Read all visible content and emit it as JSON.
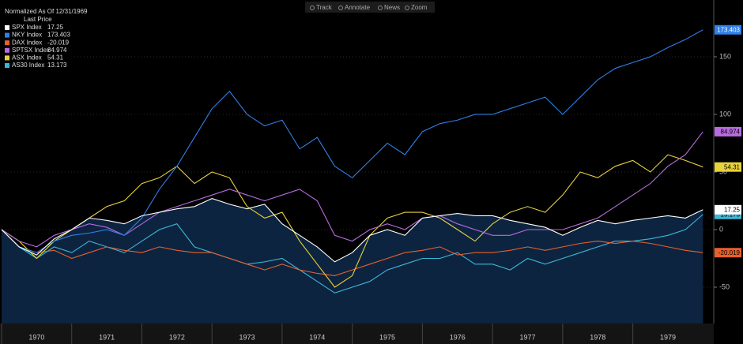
{
  "toolbar": [
    "Track",
    "Annotate",
    "News",
    "Zoom"
  ],
  "chart_data": {
    "type": "line",
    "legend_title": "Normalized As Of 12/31/1969",
    "legend_subtitle": "Last Price",
    "x": [
      1970,
      1970.25,
      1970.5,
      1970.75,
      1971,
      1971.25,
      1971.5,
      1971.75,
      1972,
      1972.25,
      1972.5,
      1972.75,
      1973,
      1973.25,
      1973.5,
      1973.75,
      1974,
      1974.25,
      1974.5,
      1974.75,
      1975,
      1975.25,
      1975.5,
      1975.75,
      1976,
      1976.25,
      1976.5,
      1976.75,
      1977,
      1977.25,
      1977.5,
      1977.75,
      1978,
      1978.25,
      1978.5,
      1978.75,
      1979,
      1979.25,
      1979.5,
      1979.75,
      1980
    ],
    "xlim": [
      1970,
      1980.12
    ],
    "xticks": [
      {
        "value": 1970.5,
        "label": "1970"
      },
      {
        "value": 1971.5,
        "label": "1971"
      },
      {
        "value": 1972.5,
        "label": "1972"
      },
      {
        "value": 1973.5,
        "label": "1973"
      },
      {
        "value": 1974.5,
        "label": "1974"
      },
      {
        "value": 1975.5,
        "label": "1975"
      },
      {
        "value": 1976.5,
        "label": "1976"
      },
      {
        "value": 1977.5,
        "label": "1977"
      },
      {
        "value": 1978.5,
        "label": "1978"
      },
      {
        "value": 1979.5,
        "label": "1979"
      }
    ],
    "ylim": [
      -81.5,
      193.8
    ],
    "yticks": [
      -50,
      0,
      50,
      100,
      150
    ],
    "area_fill": "#0d2440",
    "series": [
      {
        "name": "SPX Index",
        "color": "#ffffff",
        "area": true,
        "values": [
          0,
          -15,
          -22,
          -8,
          0,
          10,
          8,
          5,
          12,
          15,
          18,
          20,
          27,
          22,
          18,
          22,
          5,
          -5,
          -15,
          -28,
          -20,
          -5,
          0,
          -5,
          10,
          12,
          14,
          12,
          12,
          8,
          5,
          2,
          -5,
          2,
          8,
          5,
          8,
          10,
          12,
          10,
          17.25
        ]
      },
      {
        "name": "NKY Index",
        "color": "#2f7fe8",
        "values": [
          0,
          -15,
          -20,
          -10,
          -5,
          -3,
          0,
          -5,
          10,
          35,
          55,
          80,
          105,
          120,
          100,
          90,
          95,
          70,
          80,
          55,
          45,
          60,
          75,
          65,
          85,
          92,
          95,
          100,
          100,
          105,
          110,
          115,
          100,
          115,
          130,
          140,
          145,
          150,
          158,
          165,
          173.403
        ]
      },
      {
        "name": "DAX Index",
        "color": "#e8602c",
        "values": [
          0,
          -15,
          -20,
          -18,
          -25,
          -20,
          -15,
          -18,
          -20,
          -15,
          -18,
          -20,
          -20,
          -25,
          -30,
          -35,
          -30,
          -35,
          -38,
          -40,
          -35,
          -30,
          -25,
          -20,
          -18,
          -15,
          -22,
          -20,
          -20,
          -18,
          -15,
          -18,
          -15,
          -12,
          -10,
          -12,
          -10,
          -12,
          -15,
          -18,
          -20.019
        ]
      },
      {
        "name": "SPTSX Index",
        "color": "#b86be0",
        "values": [
          0,
          -10,
          -15,
          -5,
          0,
          5,
          2,
          -5,
          5,
          15,
          20,
          25,
          30,
          35,
          30,
          25,
          30,
          35,
          25,
          -5,
          -10,
          0,
          5,
          0,
          10,
          12,
          5,
          0,
          -5,
          -5,
          0,
          0,
          0,
          5,
          10,
          20,
          30,
          40,
          55,
          65,
          84.974
        ]
      },
      {
        "name": "ASX Index",
        "color": "#e8d23a",
        "values": [
          0,
          -10,
          -25,
          -10,
          0,
          10,
          20,
          25,
          40,
          45,
          55,
          40,
          50,
          45,
          20,
          10,
          15,
          -10,
          -30,
          -50,
          -40,
          -5,
          10,
          15,
          15,
          10,
          0,
          -10,
          5,
          15,
          20,
          15,
          30,
          50,
          45,
          55,
          60,
          50,
          65,
          60,
          54.31
        ]
      },
      {
        "name": "AS30 Index",
        "color": "#3bb8d8",
        "values": [
          0,
          -15,
          -25,
          -15,
          -20,
          -10,
          -15,
          -20,
          -10,
          0,
          5,
          -15,
          -20,
          -25,
          -30,
          -28,
          -25,
          -35,
          -45,
          -55,
          -50,
          -45,
          -35,
          -30,
          -25,
          -25,
          -20,
          -30,
          -30,
          -35,
          -25,
          -30,
          -25,
          -20,
          -15,
          -10,
          -10,
          -8,
          -5,
          0,
          13.173
        ]
      }
    ]
  }
}
